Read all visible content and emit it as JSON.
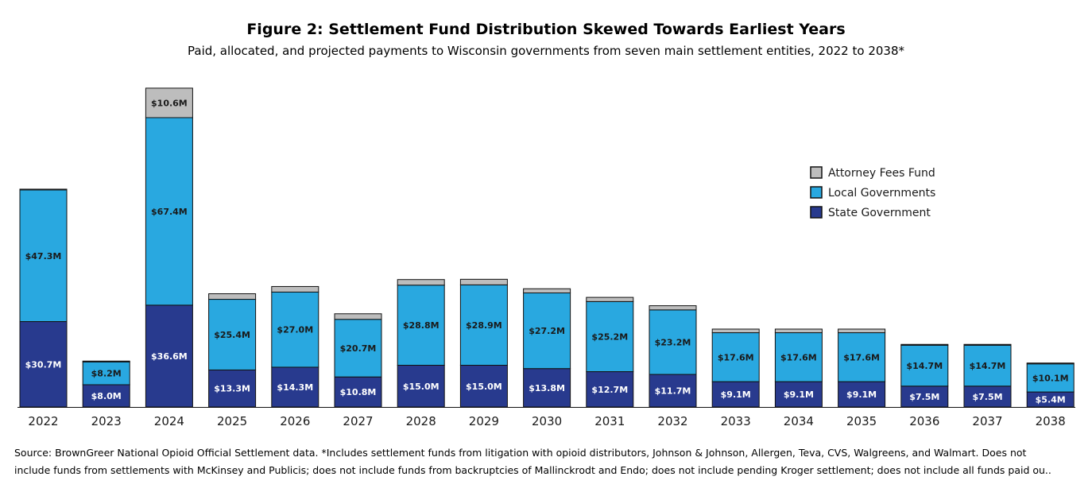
{
  "chart_data": {
    "type": "bar",
    "stacked": true,
    "title": "Figure 2: Settlement Fund Distribution Skewed Towards Earliest Years",
    "subtitle": "Paid, allocated, and projected payments to Wisconsin governments from seven main settlement entities, 2022 to 2038*",
    "xlabel": "",
    "ylabel": "",
    "grid": false,
    "legend_position": "right",
    "categories": [
      "2022",
      "2023",
      "2024",
      "2025",
      "2026",
      "2027",
      "2028",
      "2029",
      "2030",
      "2031",
      "2032",
      "2033",
      "2034",
      "2035",
      "2036",
      "2037",
      "2038"
    ],
    "series": [
      {
        "name": "State Government",
        "color": "#283a8e",
        "values": [
          30.7,
          8.0,
          36.6,
          13.3,
          14.3,
          10.8,
          15.0,
          15.0,
          13.8,
          12.7,
          11.7,
          9.1,
          9.1,
          9.1,
          7.5,
          7.5,
          5.4
        ],
        "labels": [
          "$30.7M",
          "$8.0M",
          "$36.6M",
          "$13.3M",
          "$14.3M",
          "$10.8M",
          "$15.0M",
          "$15.0M",
          "$13.8M",
          "$12.7M",
          "$11.7M",
          "$9.1M",
          "$9.1M",
          "$9.1M",
          "$7.5M",
          "$7.5M",
          "$5.4M"
        ]
      },
      {
        "name": "Local Governments",
        "color": "#29a8e0",
        "values": [
          47.3,
          8.2,
          67.4,
          25.4,
          27.0,
          20.7,
          28.8,
          28.9,
          27.2,
          25.2,
          23.2,
          17.6,
          17.6,
          17.6,
          14.7,
          14.7,
          10.1
        ],
        "labels": [
          "$47.3M",
          "$8.2M",
          "$67.4M",
          "$25.4M",
          "$27.0M",
          "$20.7M",
          "$28.8M",
          "$28.9M",
          "$27.2M",
          "$25.2M",
          "$23.2M",
          "$17.6M",
          "$17.6M",
          "$17.6M",
          "$14.7M",
          "$14.7M",
          "$10.1M"
        ]
      },
      {
        "name": "Attorney Fees Fund",
        "color": "#bdbdbd",
        "values": [
          0.3,
          0.3,
          10.6,
          2.0,
          2.0,
          2.0,
          2.0,
          2.0,
          1.5,
          1.5,
          1.5,
          1.3,
          1.3,
          1.3,
          0.3,
          0.3,
          0.3
        ],
        "labels": [
          "",
          "",
          "$10.6M",
          "",
          "",
          "",
          "",
          "",
          "",
          "",
          "",
          "",
          "",
          "",
          "",
          "",
          ""
        ]
      }
    ],
    "legend_order": [
      "Attorney Fees Fund",
      "Local Governments",
      "State Government"
    ]
  },
  "source": {
    "line1": "Source: BrownGreer National Opioid Official Settlement data. *Includes settlement funds from litigation with opioid distributors, Johnson & Johnson, Allergen, Teva, CVS, Walgreens, and Walmart. Does not",
    "line2": "include funds from settlements with McKinsey and Publicis; does not include funds from backruptcies of Mallinckrodt and Endo; does not include pending Kroger settlement; does not include all funds paid ou.."
  }
}
